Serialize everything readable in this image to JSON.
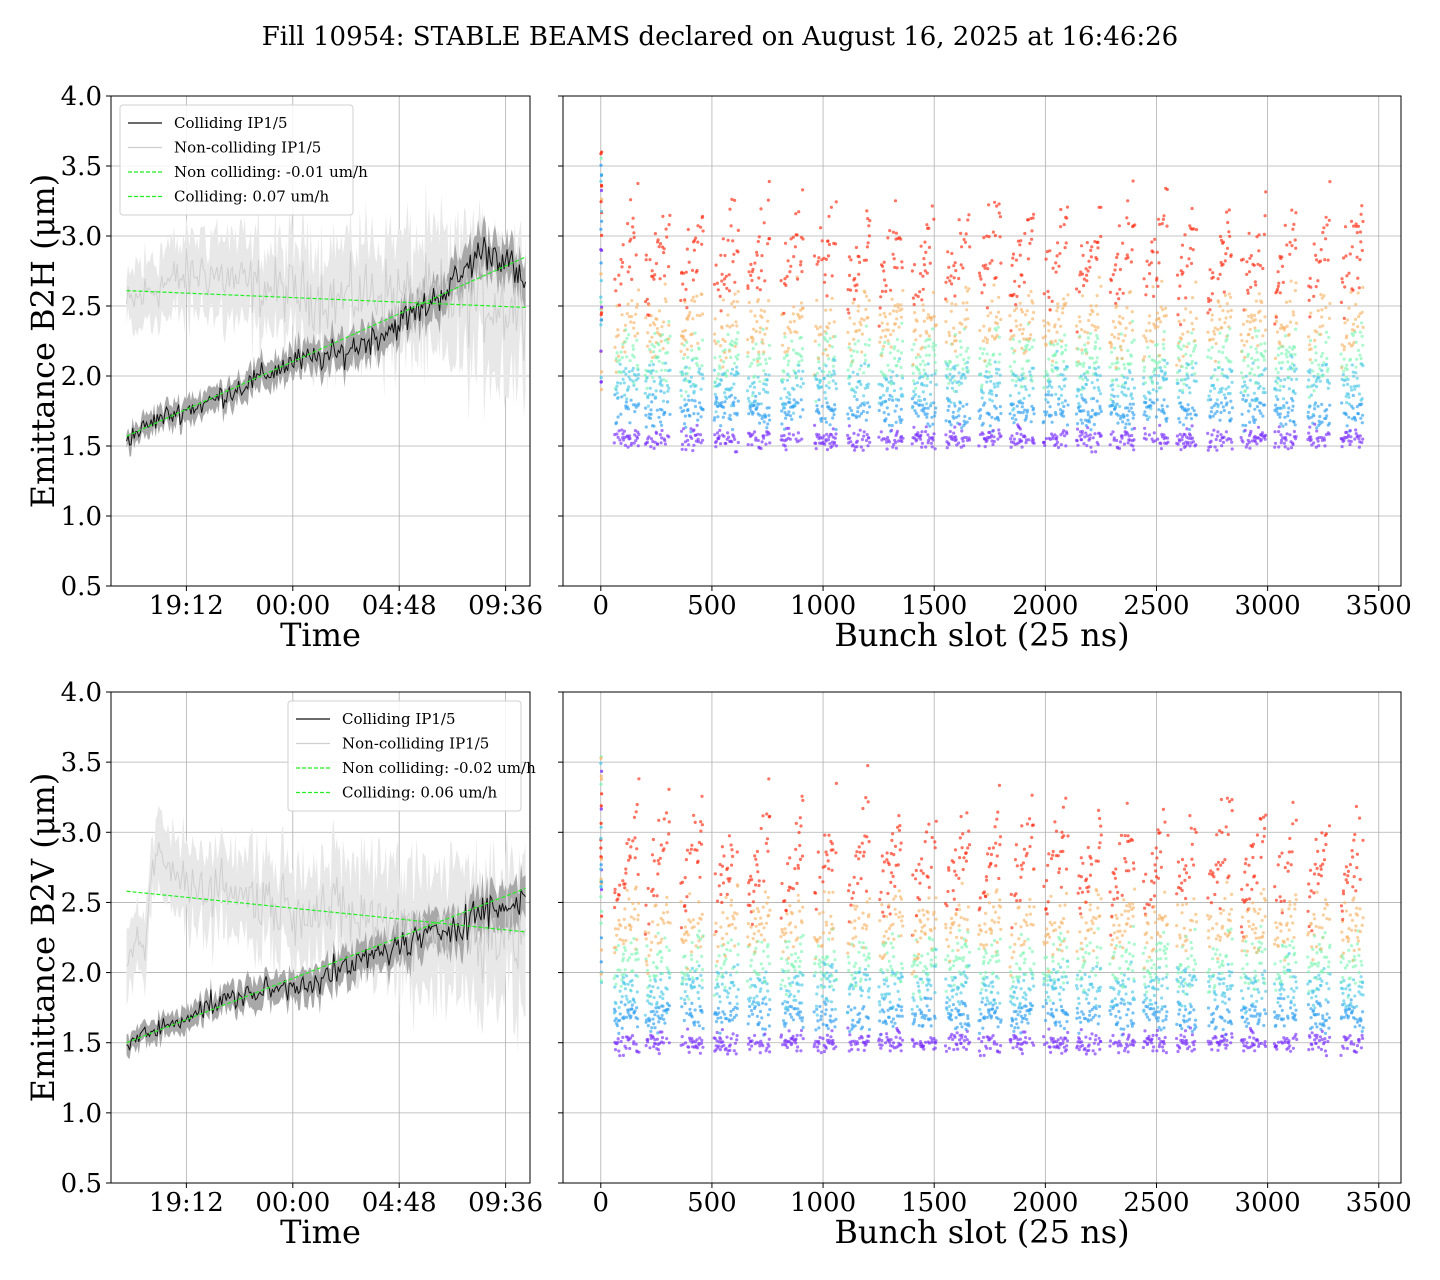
{
  "figure": {
    "suptitle": "Fill 10954: STABLE BEAMS declared on August 16, 2025 at 16:46:26"
  },
  "chart_data": [
    {
      "type": "line",
      "panel": "top-left",
      "xlabel": "Time",
      "ylabel": "Emittance B2H (μm)",
      "ylim": [
        0.5,
        4.0
      ],
      "yticks": [
        "0.5",
        "1.0",
        "1.5",
        "2.0",
        "2.5",
        "3.0",
        "3.5",
        "4.0"
      ],
      "xticks": [
        "19:12",
        "00:00",
        "04:48",
        "09:36"
      ],
      "x_hours_range": [
        15.8,
        34.7
      ],
      "x_tick_hours": [
        19.2,
        24.0,
        28.8,
        33.6
      ],
      "grid": true,
      "legend_position": "upper-left",
      "legend": [
        "Colliding IP1/5",
        "Non-colliding IP1/5",
        "Non colliding: -0.01 um/h",
        "Colliding: 0.07 um/h"
      ],
      "series": [
        {
          "name": "Colliding IP1/5",
          "x": [
            16.5,
            18.0,
            20.0,
            22.0,
            24.0,
            26.0,
            28.0,
            30.0,
            31.5,
            32.5,
            33.6,
            34.5
          ],
          "values": [
            1.55,
            1.7,
            1.8,
            1.95,
            2.1,
            2.15,
            2.3,
            2.5,
            2.7,
            2.9,
            2.85,
            2.6
          ]
        },
        {
          "name": "Non-colliding IP1/5",
          "x": [
            16.5,
            18.0,
            20.0,
            22.0,
            24.0,
            26.0,
            28.0,
            30.0,
            32.0,
            34.0
          ],
          "values": [
            2.5,
            2.65,
            2.75,
            2.65,
            2.6,
            2.55,
            2.6,
            2.55,
            2.55,
            2.5
          ]
        },
        {
          "name": "Non colliding: -0.01 um/h",
          "x": [
            16.5,
            34.5
          ],
          "values": [
            2.61,
            2.49
          ]
        },
        {
          "name": "Colliding: 0.07 um/h",
          "x": [
            16.5,
            34.5
          ],
          "values": [
            1.57,
            2.85
          ]
        }
      ]
    },
    {
      "type": "scatter",
      "panel": "top-right",
      "xlabel": "Bunch slot (25 ns)",
      "ylim": [
        0.5,
        4.0
      ],
      "xlim": [
        -170,
        3600
      ],
      "xticks": [
        0,
        500,
        1000,
        1500,
        2000,
        2500,
        3000,
        3500
      ],
      "grid": true,
      "colormap": "rainbow (purple = start of fill, red = end of fill)",
      "trains": [
        [
          60,
          170
        ],
        [
          200,
          310
        ],
        [
          360,
          460
        ],
        [
          510,
          620
        ],
        [
          660,
          760
        ],
        [
          810,
          910
        ],
        [
          960,
          1060
        ],
        [
          1110,
          1210
        ],
        [
          1250,
          1360
        ],
        [
          1400,
          1510
        ],
        [
          1550,
          1660
        ],
        [
          1700,
          1800
        ],
        [
          1840,
          1950
        ],
        [
          1990,
          2100
        ],
        [
          2140,
          2250
        ],
        [
          2290,
          2400
        ],
        [
          2440,
          2550
        ],
        [
          2590,
          2680
        ],
        [
          2730,
          2840
        ],
        [
          2880,
          2990
        ],
        [
          3030,
          3130
        ],
        [
          3180,
          3280
        ],
        [
          3330,
          3430
        ]
      ],
      "band_centers": [
        1.55,
        1.75,
        1.9,
        2.05,
        2.25,
        2.6
      ],
      "band_rise": [
        0.0,
        0.0,
        0.03,
        0.05,
        0.07,
        0.1
      ]
    },
    {
      "type": "line",
      "panel": "bottom-left",
      "xlabel": "Time",
      "ylabel": "Emittance B2V (μm)",
      "ylim": [
        0.5,
        4.0
      ],
      "yticks": [
        "0.5",
        "1.0",
        "1.5",
        "2.0",
        "2.5",
        "3.0",
        "3.5",
        "4.0"
      ],
      "xticks": [
        "19:12",
        "00:00",
        "04:48",
        "09:36"
      ],
      "x_hours_range": [
        15.8,
        34.7
      ],
      "x_tick_hours": [
        19.2,
        24.0,
        28.8,
        33.6
      ],
      "grid": true,
      "legend_position": "upper-right",
      "legend": [
        "Colliding IP1/5",
        "Non-colliding IP1/5",
        "Non colliding: -0.02 um/h",
        "Colliding: 0.06 um/h"
      ],
      "series": [
        {
          "name": "Colliding IP1/5",
          "x": [
            16.5,
            18.0,
            20.0,
            22.0,
            24.0,
            26.0,
            28.0,
            30.0,
            31.5,
            32.5,
            33.6,
            34.5
          ],
          "values": [
            1.5,
            1.6,
            1.75,
            1.85,
            1.9,
            2.0,
            2.15,
            2.25,
            2.35,
            2.45,
            2.45,
            2.55
          ]
        },
        {
          "name": "Non-colliding IP1/5",
          "x": [
            16.5,
            17.3,
            17.8,
            19.0,
            21.0,
            23.0,
            25.0,
            27.0,
            29.0,
            31.0,
            33.0,
            34.5
          ],
          "values": [
            2.1,
            2.2,
            2.85,
            2.65,
            2.6,
            2.5,
            2.45,
            2.4,
            2.35,
            2.3,
            2.3,
            2.25
          ]
        },
        {
          "name": "Non colliding: -0.02 um/h",
          "x": [
            16.5,
            34.5
          ],
          "values": [
            2.58,
            2.29
          ]
        },
        {
          "name": "Colliding: 0.06 um/h",
          "x": [
            16.5,
            34.5
          ],
          "values": [
            1.5,
            2.6
          ]
        }
      ]
    },
    {
      "type": "scatter",
      "panel": "bottom-right",
      "xlabel": "Bunch slot (25 ns)",
      "ylim": [
        0.5,
        4.0
      ],
      "xlim": [
        -170,
        3600
      ],
      "xticks": [
        0,
        500,
        1000,
        1500,
        2000,
        2500,
        3000,
        3500
      ],
      "grid": true,
      "colormap": "rainbow (purple = start of fill, red = end of fill)",
      "trains": [
        [
          60,
          170
        ],
        [
          200,
          310
        ],
        [
          360,
          460
        ],
        [
          510,
          620
        ],
        [
          660,
          760
        ],
        [
          810,
          910
        ],
        [
          960,
          1060
        ],
        [
          1110,
          1210
        ],
        [
          1250,
          1360
        ],
        [
          1400,
          1510
        ],
        [
          1550,
          1660
        ],
        [
          1700,
          1800
        ],
        [
          1840,
          1950
        ],
        [
          1990,
          2100
        ],
        [
          2140,
          2250
        ],
        [
          2290,
          2400
        ],
        [
          2440,
          2550
        ],
        [
          2590,
          2680
        ],
        [
          2730,
          2840
        ],
        [
          2880,
          2990
        ],
        [
          3030,
          3130
        ],
        [
          3180,
          3280
        ],
        [
          3330,
          3430
        ]
      ],
      "band_centers": [
        1.5,
        1.7,
        1.85,
        2.0,
        2.2,
        2.5
      ],
      "band_rise": [
        0.0,
        0.0,
        0.03,
        0.05,
        0.08,
        0.12
      ]
    }
  ]
}
